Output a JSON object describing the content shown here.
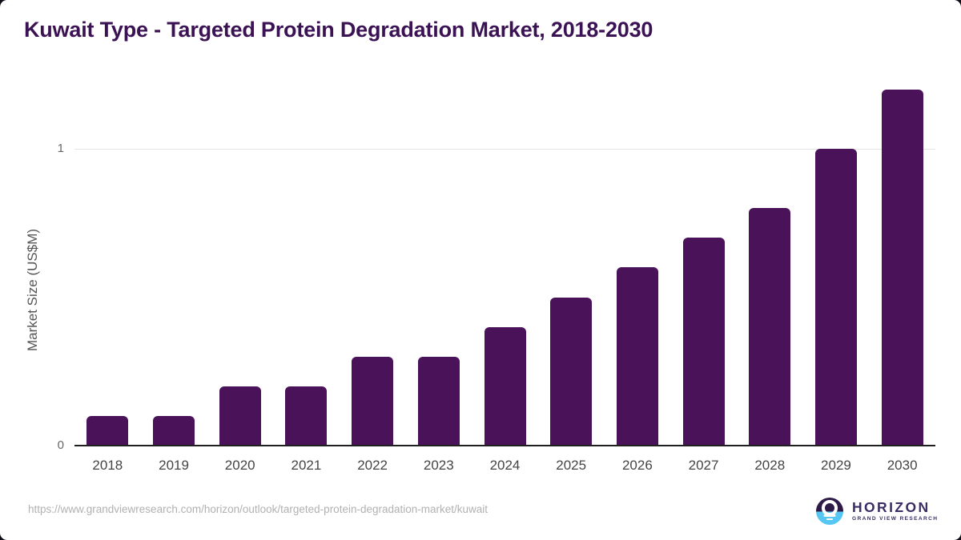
{
  "chart_data": {
    "type": "bar",
    "title": "Kuwait Type - Targeted Protein Degradation Market, 2018-2030",
    "categories": [
      "2018",
      "2019",
      "2020",
      "2021",
      "2022",
      "2023",
      "2024",
      "2025",
      "2026",
      "2027",
      "2028",
      "2029",
      "2030"
    ],
    "values": [
      0.1,
      0.1,
      0.2,
      0.2,
      0.3,
      0.3,
      0.4,
      0.5,
      0.6,
      0.7,
      0.8,
      1.0,
      1.2
    ],
    "xlabel": "",
    "ylabel": "Market Size (US$M)",
    "ylim": [
      0,
      1.25
    ],
    "yticks": [
      {
        "value": 0,
        "label": "0"
      },
      {
        "value": 1,
        "label": "1"
      }
    ],
    "grid": "horizontal gridline at y=1 only",
    "legend": "none",
    "bar_color": "#4a1259"
  },
  "footer": {
    "source_url": "https://www.grandviewresearch.com/horizon/outlook/targeted-protein-degradation-market/kuwait",
    "logo": {
      "name": "HORIZON",
      "subtitle": "GRAND VIEW RESEARCH"
    }
  },
  "colors": {
    "title_text": "#3b1253",
    "bar": "#4a1259",
    "axis_line": "#1f1f1f",
    "gridline": "#e4e4e4",
    "tick_label": "#666666",
    "x_label": "#444444",
    "url_text": "#b1b1b1",
    "logo_dark_half": "#2d1a47",
    "logo_blue_half": "#56c6f2",
    "logo_text": "#3a2d64"
  }
}
